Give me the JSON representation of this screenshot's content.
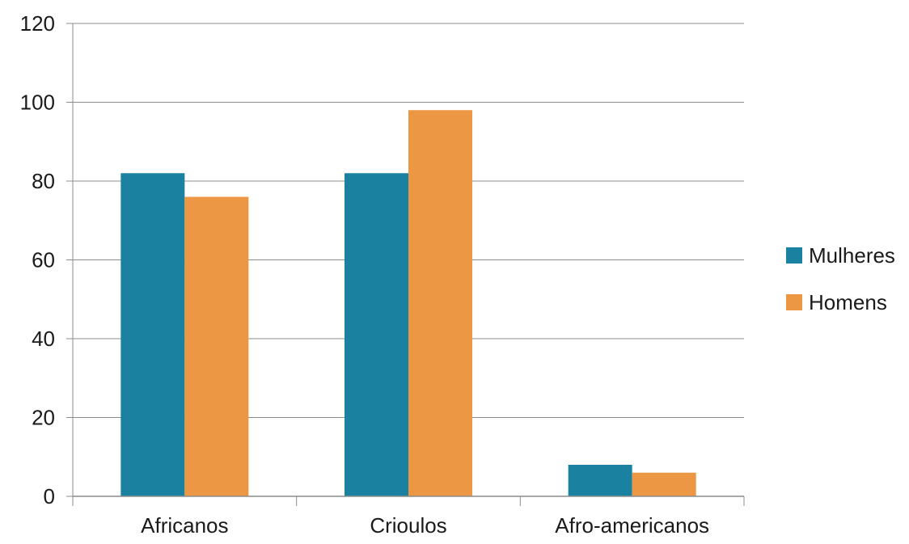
{
  "chart_data": {
    "type": "bar",
    "categories": [
      "Africanos",
      "Crioulos",
      "Afro-americanos"
    ],
    "series": [
      {
        "name": "Mulheres",
        "values": [
          82,
          82,
          8
        ],
        "color": "#1a82a0"
      },
      {
        "name": "Homens",
        "values": [
          76,
          98,
          6
        ],
        "color": "#ec9744"
      }
    ],
    "yticks": [
      0,
      20,
      40,
      60,
      80,
      100,
      120
    ],
    "ylim": [
      0,
      120
    ],
    "grid": true,
    "legend_position": "right",
    "title": "",
    "xlabel": "",
    "ylabel": ""
  }
}
